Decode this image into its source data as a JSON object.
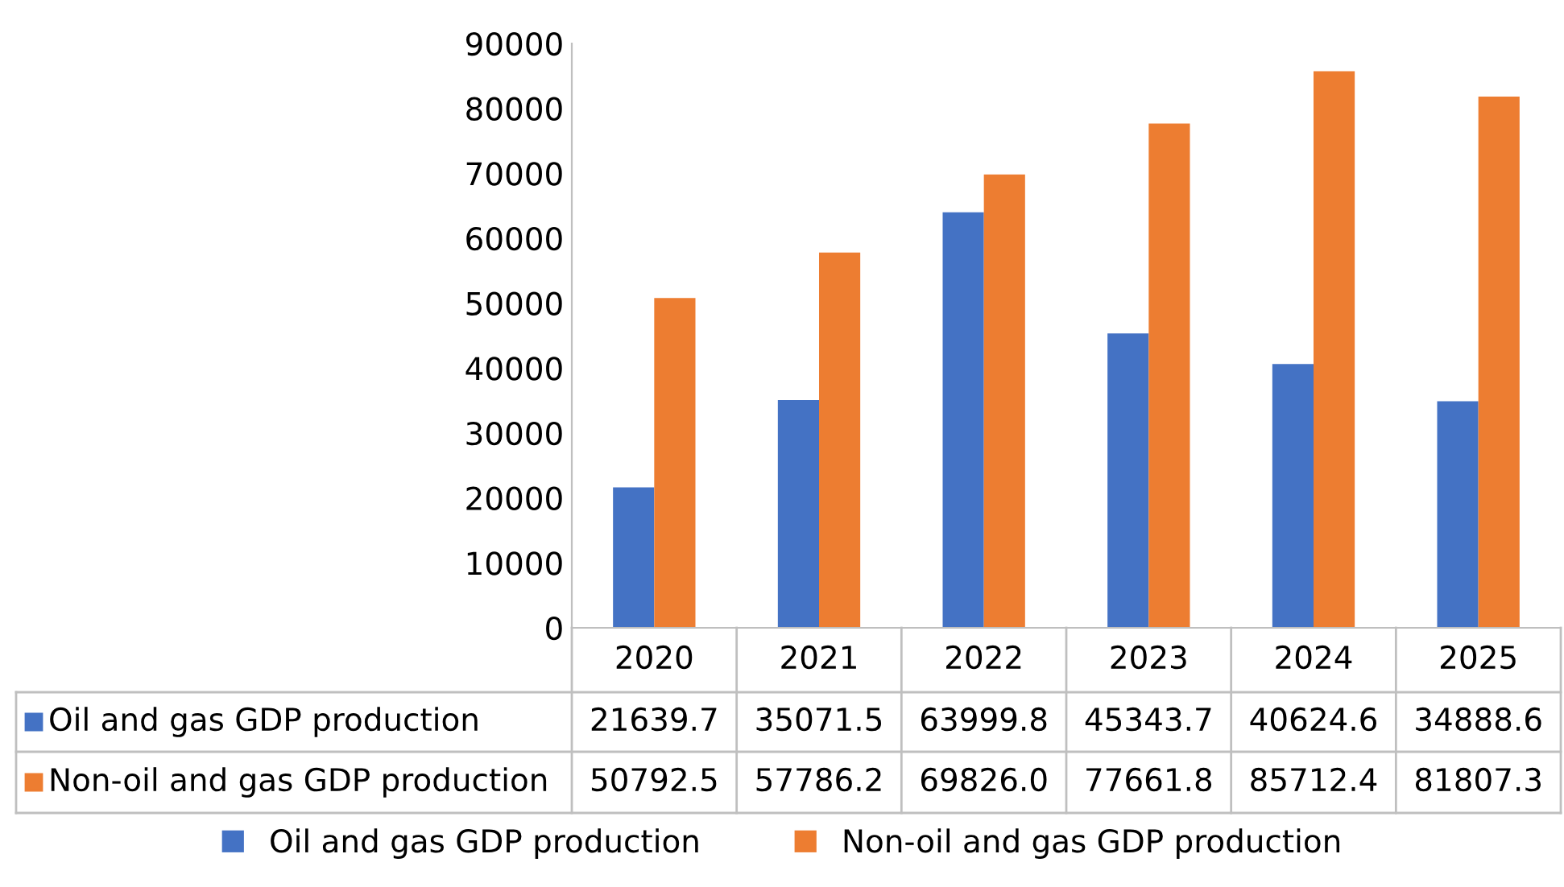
{
  "chart_data": {
    "type": "bar",
    "categories": [
      "2020",
      "2021",
      "2022",
      "2023",
      "2024",
      "2025"
    ],
    "series": [
      {
        "name": "Oil and gas GDP production",
        "color": "#4472c4",
        "values": [
          21639.7,
          35071.5,
          63999.8,
          45343.7,
          40624.6,
          34888.6
        ],
        "value_labels": [
          "21639.7",
          "35071.5",
          "63999.8",
          "45343.7",
          "40624.6",
          "34888.6"
        ]
      },
      {
        "name": "Non-oil and gas GDP production",
        "color": "#ed7d31",
        "values": [
          50792.5,
          57786.2,
          69826.0,
          77661.8,
          85712.4,
          81807.3
        ],
        "value_labels": [
          "50792.5",
          "57786.2",
          "69826.0",
          "77661.8",
          "85712.4",
          "81807.3"
        ]
      }
    ],
    "ylim": [
      0,
      90000
    ],
    "yticks": [
      0,
      10000,
      20000,
      30000,
      40000,
      50000,
      60000,
      70000,
      80000,
      90000
    ],
    "grid": false,
    "legend": "bottom"
  }
}
